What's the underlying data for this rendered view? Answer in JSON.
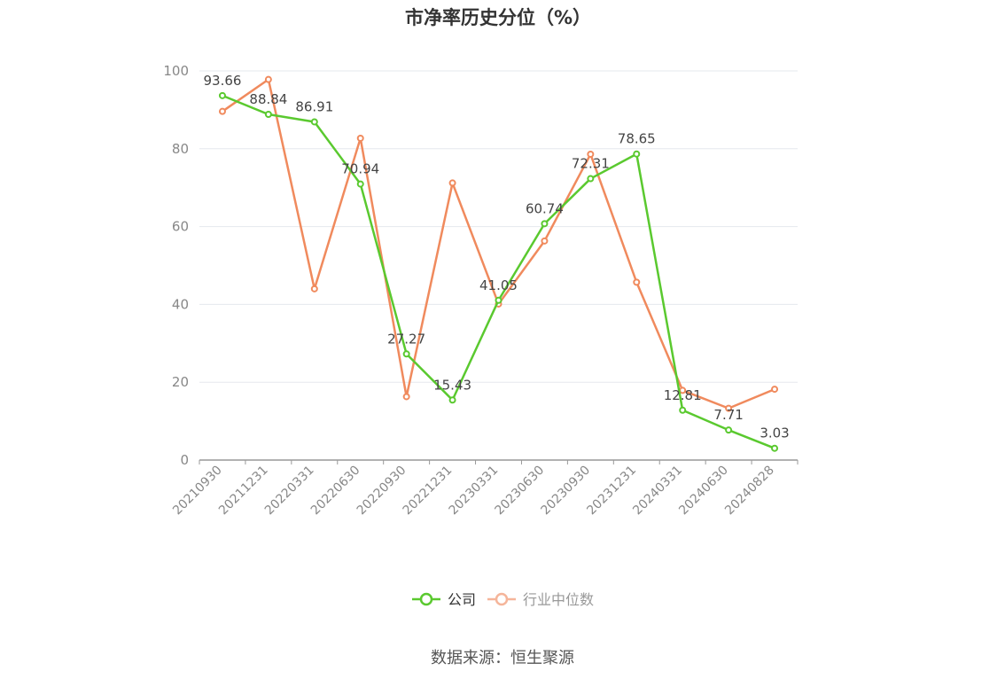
{
  "title": "市净率历史分位（%）",
  "source": {
    "label": "数据来源：",
    "value": "恒生聚源"
  },
  "colors": {
    "company": "#5ac92f",
    "industry": "#f08a5d",
    "industry_legend": "#f5b59a",
    "grid": "#e5e8ee",
    "axis": "#999999"
  },
  "chart_data": {
    "type": "line",
    "title": "市净率历史分位（%）",
    "xlabel": "",
    "ylabel": "",
    "ylim": [
      0,
      100
    ],
    "yticks": [
      0,
      20,
      40,
      60,
      80,
      100
    ],
    "grid": true,
    "legend_position": "bottom-center",
    "categories": [
      "20210930",
      "20211231",
      "20220331",
      "20220630",
      "20220930",
      "20221231",
      "20230331",
      "20230630",
      "20230930",
      "20231231",
      "20240331",
      "20240630",
      "20240828"
    ],
    "series": [
      {
        "name": "公司",
        "color": "#5ac92f",
        "values": [
          93.66,
          88.84,
          86.91,
          70.94,
          27.27,
          15.43,
          41.05,
          60.74,
          72.31,
          78.65,
          12.81,
          7.71,
          3.03
        ],
        "labels": [
          "93.66",
          "88.84",
          "86.91",
          "70.94",
          "27.27",
          "15.43",
          "41.05",
          "60.74",
          "72.31",
          "78.65",
          "12.81",
          "7.71",
          "3.03"
        ]
      },
      {
        "name": "行业中位数",
        "color": "#f08a5d",
        "values": [
          89.6,
          97.8,
          44.0,
          82.7,
          16.3,
          71.2,
          40.1,
          56.3,
          78.6,
          45.7,
          17.9,
          13.3,
          18.2
        ]
      }
    ]
  }
}
